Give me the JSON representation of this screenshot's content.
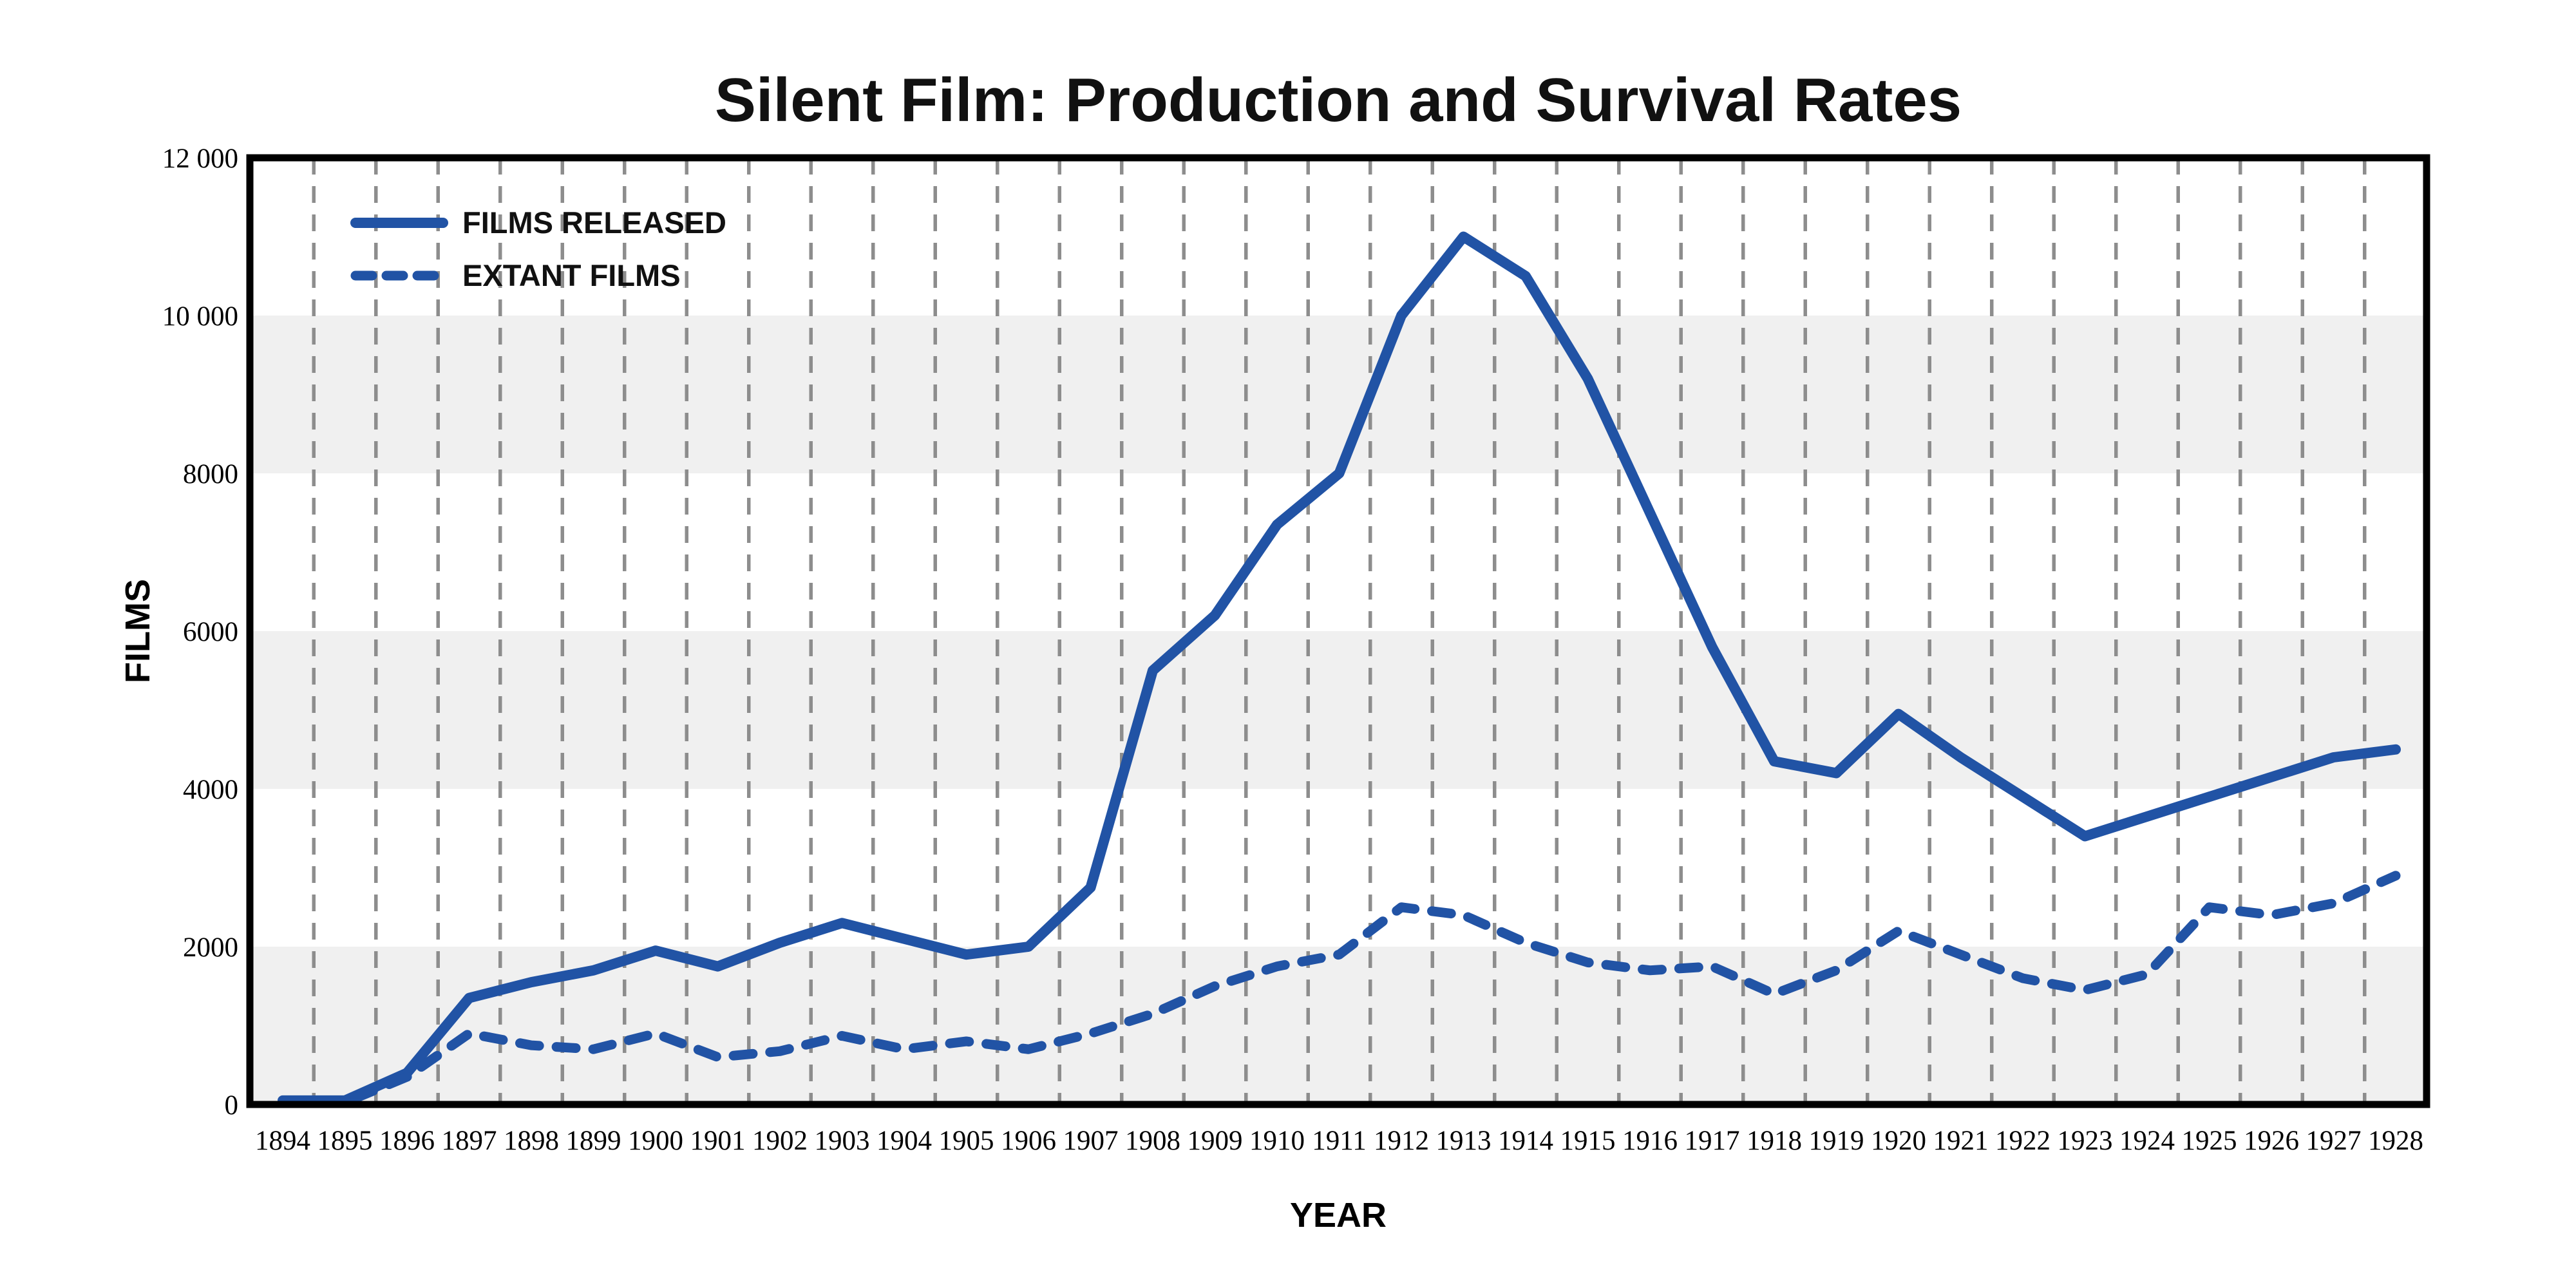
{
  "page": {
    "background_color": "#ffffff"
  },
  "colors": {
    "line_blue": "#2153a5",
    "band_gray": "#f0f0f0",
    "grid_gray": "#8d8d8d",
    "axis_black": "#000000",
    "text_black": "#111111"
  },
  "chart_data": {
    "type": "line",
    "title": "Silent Film: Production and Survival Rates",
    "xlabel": "YEAR",
    "ylabel": "FILMS",
    "ylim": [
      0,
      12000
    ],
    "yticks": [
      0,
      2000,
      4000,
      6000,
      8000,
      10000,
      12000
    ],
    "ytick_labels": [
      "0",
      "2000",
      "4000",
      "6000",
      "8000",
      "10 000",
      "12 000"
    ],
    "grid": "vertical-dashed-between-years",
    "shaded_bands": [
      [
        0,
        2000
      ],
      [
        4000,
        6000
      ],
      [
        8000,
        10000
      ]
    ],
    "legend_position": "top-left",
    "categories": [
      1894,
      1895,
      1896,
      1897,
      1898,
      1899,
      1900,
      1901,
      1902,
      1903,
      1904,
      1905,
      1906,
      1907,
      1908,
      1909,
      1910,
      1911,
      1912,
      1913,
      1914,
      1915,
      1916,
      1917,
      1918,
      1919,
      1920,
      1921,
      1922,
      1923,
      1924,
      1925,
      1926,
      1927,
      1928
    ],
    "series": [
      {
        "name": "FILMS RELEASED",
        "style": "solid",
        "values": [
          50,
          50,
          400,
          1350,
          1550,
          1700,
          1950,
          1750,
          2050,
          2300,
          2100,
          1900,
          2000,
          2750,
          5500,
          6200,
          7350,
          8000,
          10000,
          11000,
          10500,
          9200,
          7500,
          5800,
          4350,
          4200,
          4950,
          4400,
          3900,
          3400,
          3650,
          3900,
          4150,
          4400,
          4500
        ]
      },
      {
        "name": "EXTANT FILMS",
        "style": "dashed",
        "values": [
          25,
          25,
          350,
          900,
          750,
          700,
          900,
          600,
          675,
          870,
          700,
          800,
          700,
          900,
          1150,
          1500,
          1750,
          1900,
          2500,
          2400,
          2050,
          1800,
          1700,
          1750,
          1400,
          1700,
          2200,
          1900,
          1600,
          1450,
          1650,
          2500,
          2400,
          2550,
          2900
        ]
      }
    ]
  }
}
